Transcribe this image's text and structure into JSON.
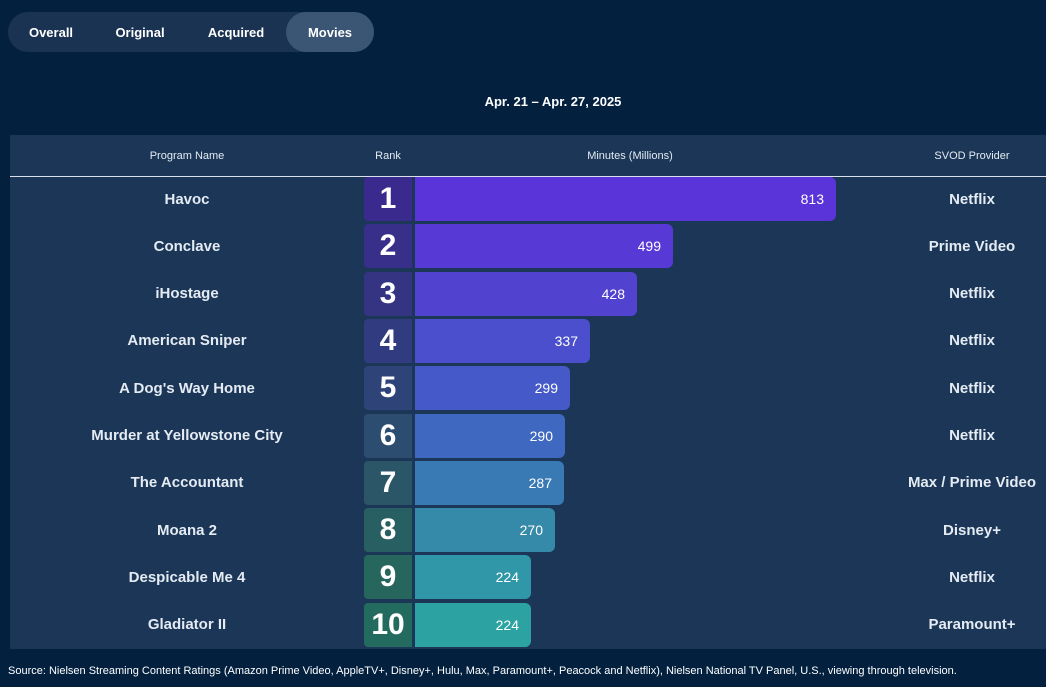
{
  "tabs": [
    {
      "label": "Overall"
    },
    {
      "label": "Original"
    },
    {
      "label": "Acquired"
    },
    {
      "label": "Movies"
    }
  ],
  "active_tab": "Movies",
  "date_range": "Apr. 21 – Apr. 27, 2025",
  "columns": {
    "program": "Program Name",
    "rank": "Rank",
    "minutes": "Minutes (Millions)",
    "provider": "SVOD Provider"
  },
  "chart_data": {
    "type": "bar",
    "orientation": "horizontal",
    "title": "",
    "xlabel": "Minutes (Millions)",
    "ylabel": "",
    "xlim": [
      0,
      813
    ],
    "categories": [
      "Havoc",
      "Conclave",
      "iHostage",
      "American Sniper",
      "A Dog's Way Home",
      "Murder at Yellowstone City",
      "The Accountant",
      "Moana 2",
      "Despicable Me 4",
      "Gladiator II"
    ],
    "ranks": [
      "1",
      "2",
      "3",
      "4",
      "5",
      "6",
      "7",
      "8",
      "9",
      "10"
    ],
    "values": [
      813,
      499,
      428,
      337,
      299,
      290,
      287,
      270,
      224,
      224
    ],
    "providers": [
      "Netflix",
      "Prime Video",
      "Netflix",
      "Netflix",
      "Netflix",
      "Netflix",
      "Max / Prime Video",
      "Disney+",
      "Netflix",
      "Paramount+"
    ],
    "bar_colors": [
      "#5a34d8",
      "#573ad6",
      "#5143d0",
      "#4b4fcd",
      "#455ac8",
      "#3f68c0",
      "#3979b4",
      "#348aa8",
      "#3097a8",
      "#2ca3a2"
    ],
    "rank_colors": [
      "#3a2a8e",
      "#372f8a",
      "#343483",
      "#303c7f",
      "#2e4378",
      "#2c4d70",
      "#2a5668",
      "#285f62",
      "#26665d",
      "#236b5f"
    ]
  },
  "source": "Source: Nielsen Streaming Content Ratings (Amazon Prime Video, AppleTV+, Disney+, Hulu, Max, Paramount+, Peacock and Netflix), Nielsen National TV Panel, U.S., viewing through television."
}
